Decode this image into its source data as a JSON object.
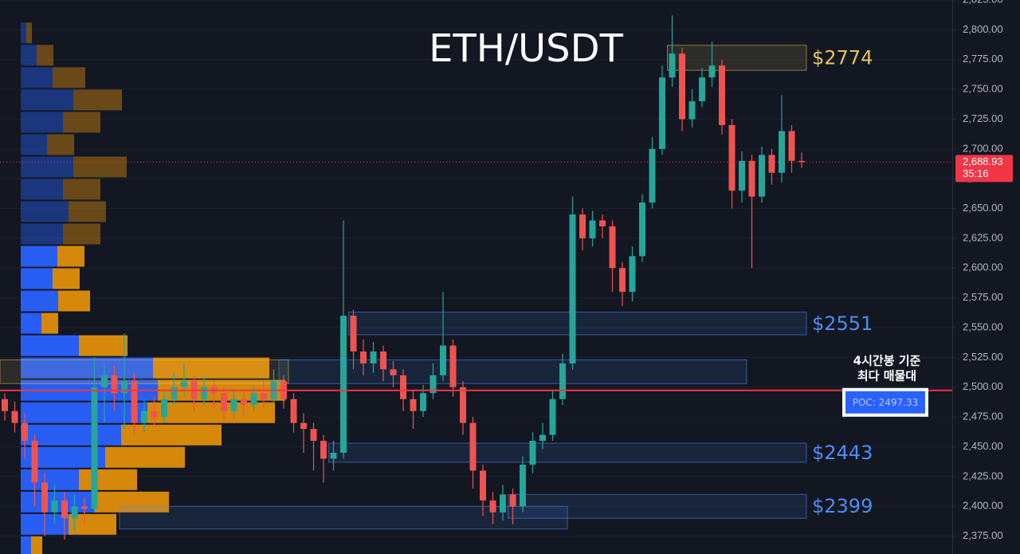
{
  "chart_data": {
    "type": "candlestick",
    "title": "ETH/USDT",
    "up_color": "#26a69a",
    "down_color": "#ef5350",
    "ylim": [
      2360,
      2825
    ],
    "yticks": [
      {
        "value": 2375,
        "label": "2,375.00"
      },
      {
        "value": 2400,
        "label": "2,400.00"
      },
      {
        "value": 2425,
        "label": "2,425.00"
      },
      {
        "value": 2450,
        "label": "2,450.00"
      },
      {
        "value": 2475,
        "label": "2,475.00"
      },
      {
        "value": 2500,
        "label": "2,500.00"
      },
      {
        "value": 2525,
        "label": "2,525.00"
      },
      {
        "value": 2550,
        "label": "2,550.00"
      },
      {
        "value": 2575,
        "label": "2,575.00"
      },
      {
        "value": 2600,
        "label": "2,600.00"
      },
      {
        "value": 2625,
        "label": "2,625.00"
      },
      {
        "value": 2650,
        "label": "2,650.00"
      },
      {
        "value": 2675,
        "label": "2,675.00"
      },
      {
        "value": 2700,
        "label": "2,700.00"
      },
      {
        "value": 2725,
        "label": "2,725.00"
      },
      {
        "value": 2750,
        "label": "2,750.00"
      },
      {
        "value": 2775,
        "label": "2,775.00"
      },
      {
        "value": 2800,
        "label": "2,800.00"
      },
      {
        "value": 2825,
        "label": "2,825.00"
      }
    ],
    "grid": true,
    "open": [
      2490,
      2480,
      2470,
      2455,
      2420,
      2395,
      2405,
      2390,
      2400,
      2398,
      2500,
      2510,
      2495,
      2505,
      2470,
      2480,
      2475,
      2490,
      2500,
      2505,
      2490,
      2500,
      2495,
      2480,
      2490,
      2485,
      2495,
      2490,
      2505,
      2490,
      2470,
      2465,
      2455,
      2440,
      2445,
      2560,
      2530,
      2520,
      2530,
      2515,
      2510,
      2490,
      2480,
      2495,
      2510,
      2535,
      2500,
      2470,
      2430,
      2405,
      2395,
      2410,
      2400,
      2435,
      2455,
      2460,
      2490,
      2520,
      2645,
      2625,
      2640,
      2635,
      2600,
      2580,
      2610,
      2655,
      2700,
      2760,
      2780,
      2725,
      2740,
      2760,
      2770,
      2720,
      2665,
      2690,
      2660,
      2695,
      2680,
      2715,
      2690
    ],
    "high": [
      2495,
      2488,
      2478,
      2460,
      2428,
      2418,
      2412,
      2410,
      2408,
      2525,
      2520,
      2518,
      2545,
      2512,
      2490,
      2492,
      2498,
      2512,
      2520,
      2510,
      2508,
      2506,
      2500,
      2498,
      2496,
      2502,
      2505,
      2515,
      2510,
      2495,
      2478,
      2470,
      2460,
      2455,
      2640,
      2565,
      2540,
      2538,
      2535,
      2522,
      2515,
      2498,
      2502,
      2520,
      2580,
      2540,
      2505,
      2475,
      2435,
      2412,
      2418,
      2415,
      2442,
      2462,
      2470,
      2498,
      2528,
      2660,
      2650,
      2648,
      2645,
      2640,
      2605,
      2618,
      2662,
      2710,
      2770,
      2812,
      2785,
      2750,
      2768,
      2790,
      2775,
      2725,
      2698,
      2695,
      2702,
      2700,
      2745,
      2720,
      2697
    ],
    "low": [
      2472,
      2462,
      2440,
      2400,
      2375,
      2385,
      2372,
      2380,
      2385,
      2395,
      2470,
      2480,
      2465,
      2460,
      2462,
      2468,
      2470,
      2485,
      2492,
      2480,
      2484,
      2482,
      2472,
      2474,
      2476,
      2480,
      2482,
      2486,
      2482,
      2462,
      2445,
      2430,
      2420,
      2430,
      2440,
      2515,
      2510,
      2512,
      2505,
      2500,
      2480,
      2465,
      2475,
      2490,
      2505,
      2492,
      2460,
      2415,
      2392,
      2385,
      2388,
      2385,
      2395,
      2428,
      2448,
      2455,
      2485,
      2515,
      2615,
      2618,
      2625,
      2580,
      2568,
      2572,
      2605,
      2650,
      2695,
      2752,
      2715,
      2718,
      2735,
      2752,
      2712,
      2650,
      2655,
      2600,
      2655,
      2670,
      2672,
      2680,
      2684
    ],
    "close": [
      2480,
      2470,
      2455,
      2420,
      2395,
      2405,
      2390,
      2400,
      2398,
      2500,
      2510,
      2495,
      2505,
      2470,
      2480,
      2475,
      2490,
      2500,
      2505,
      2490,
      2500,
      2495,
      2480,
      2490,
      2485,
      2495,
      2490,
      2505,
      2490,
      2470,
      2465,
      2455,
      2440,
      2445,
      2560,
      2530,
      2520,
      2530,
      2515,
      2510,
      2490,
      2480,
      2495,
      2510,
      2535,
      2500,
      2470,
      2430,
      2405,
      2395,
      2410,
      2400,
      2435,
      2455,
      2460,
      2490,
      2520,
      2645,
      2625,
      2640,
      2635,
      2600,
      2580,
      2610,
      2655,
      2700,
      2760,
      2780,
      2725,
      2740,
      2760,
      2770,
      2720,
      2665,
      2690,
      2660,
      2695,
      2680,
      2715,
      2690,
      2688.93
    ],
    "volume_profile": {
      "bins": [
        2806.75,
        2788,
        2769.25,
        2750.5,
        2731.75,
        2713,
        2694.25,
        2675.5,
        2656.75,
        2638,
        2619.25,
        2600.5,
        2581.75,
        2563,
        2544.25,
        2525.5,
        2506.75,
        2488,
        2469.25,
        2450.5,
        2431.75,
        2413,
        2394.25,
        2375.5,
        2356.75
      ],
      "buy": [
        7,
        20,
        40,
        66,
        53,
        33,
        66,
        53,
        60,
        53,
        46,
        40,
        47,
        26,
        73,
        166,
        172,
        159,
        126,
        106,
        73,
        93,
        60,
        13
      ],
      "sell": [
        7,
        21,
        41,
        61,
        47,
        34,
        67,
        47,
        47,
        47,
        34,
        34,
        40,
        21,
        61,
        146,
        160,
        160,
        126,
        100,
        73,
        93,
        60,
        14
      ],
      "buy_color": "#2962ff",
      "sell_color": "#e08e0b",
      "value_area": [
        2356.75,
        2619.25
      ]
    },
    "zones": [
      {
        "label": "$2774",
        "low": 2766,
        "high": 2787,
        "start": 67,
        "color": "#e8c35a"
      },
      {
        "label": "$2551",
        "low": 2544,
        "high": 2563,
        "start": 35,
        "color": "#4d8cf5"
      },
      {
        "low": 2503,
        "high": 2523,
        "start": 0,
        "end": 28,
        "color": "#e8c35a"
      },
      {
        "low": 2503,
        "high": 2523,
        "start": 28,
        "end": 74,
        "color": "#4d8cf5"
      },
      {
        "label": "$2443",
        "low": 2437,
        "high": 2453,
        "start": 33,
        "color": "#4d8cf5"
      },
      {
        "label": "$2399",
        "low": 2390,
        "high": 2410,
        "start": 51,
        "color": "#4d8cf5"
      },
      {
        "low": 2381,
        "high": 2400,
        "start": 12,
        "end": 56,
        "color": "#4d8cf5"
      }
    ],
    "poc": {
      "value": 2497.33,
      "label": "POC: 2497.33",
      "note": [
        "4시간봉 기준",
        "최다 매물대"
      ],
      "color": "#f23645"
    },
    "last_price": {
      "value": 2688.93,
      "label": "2,688.93",
      "countdown": "35:16",
      "color": "#f23645"
    }
  }
}
